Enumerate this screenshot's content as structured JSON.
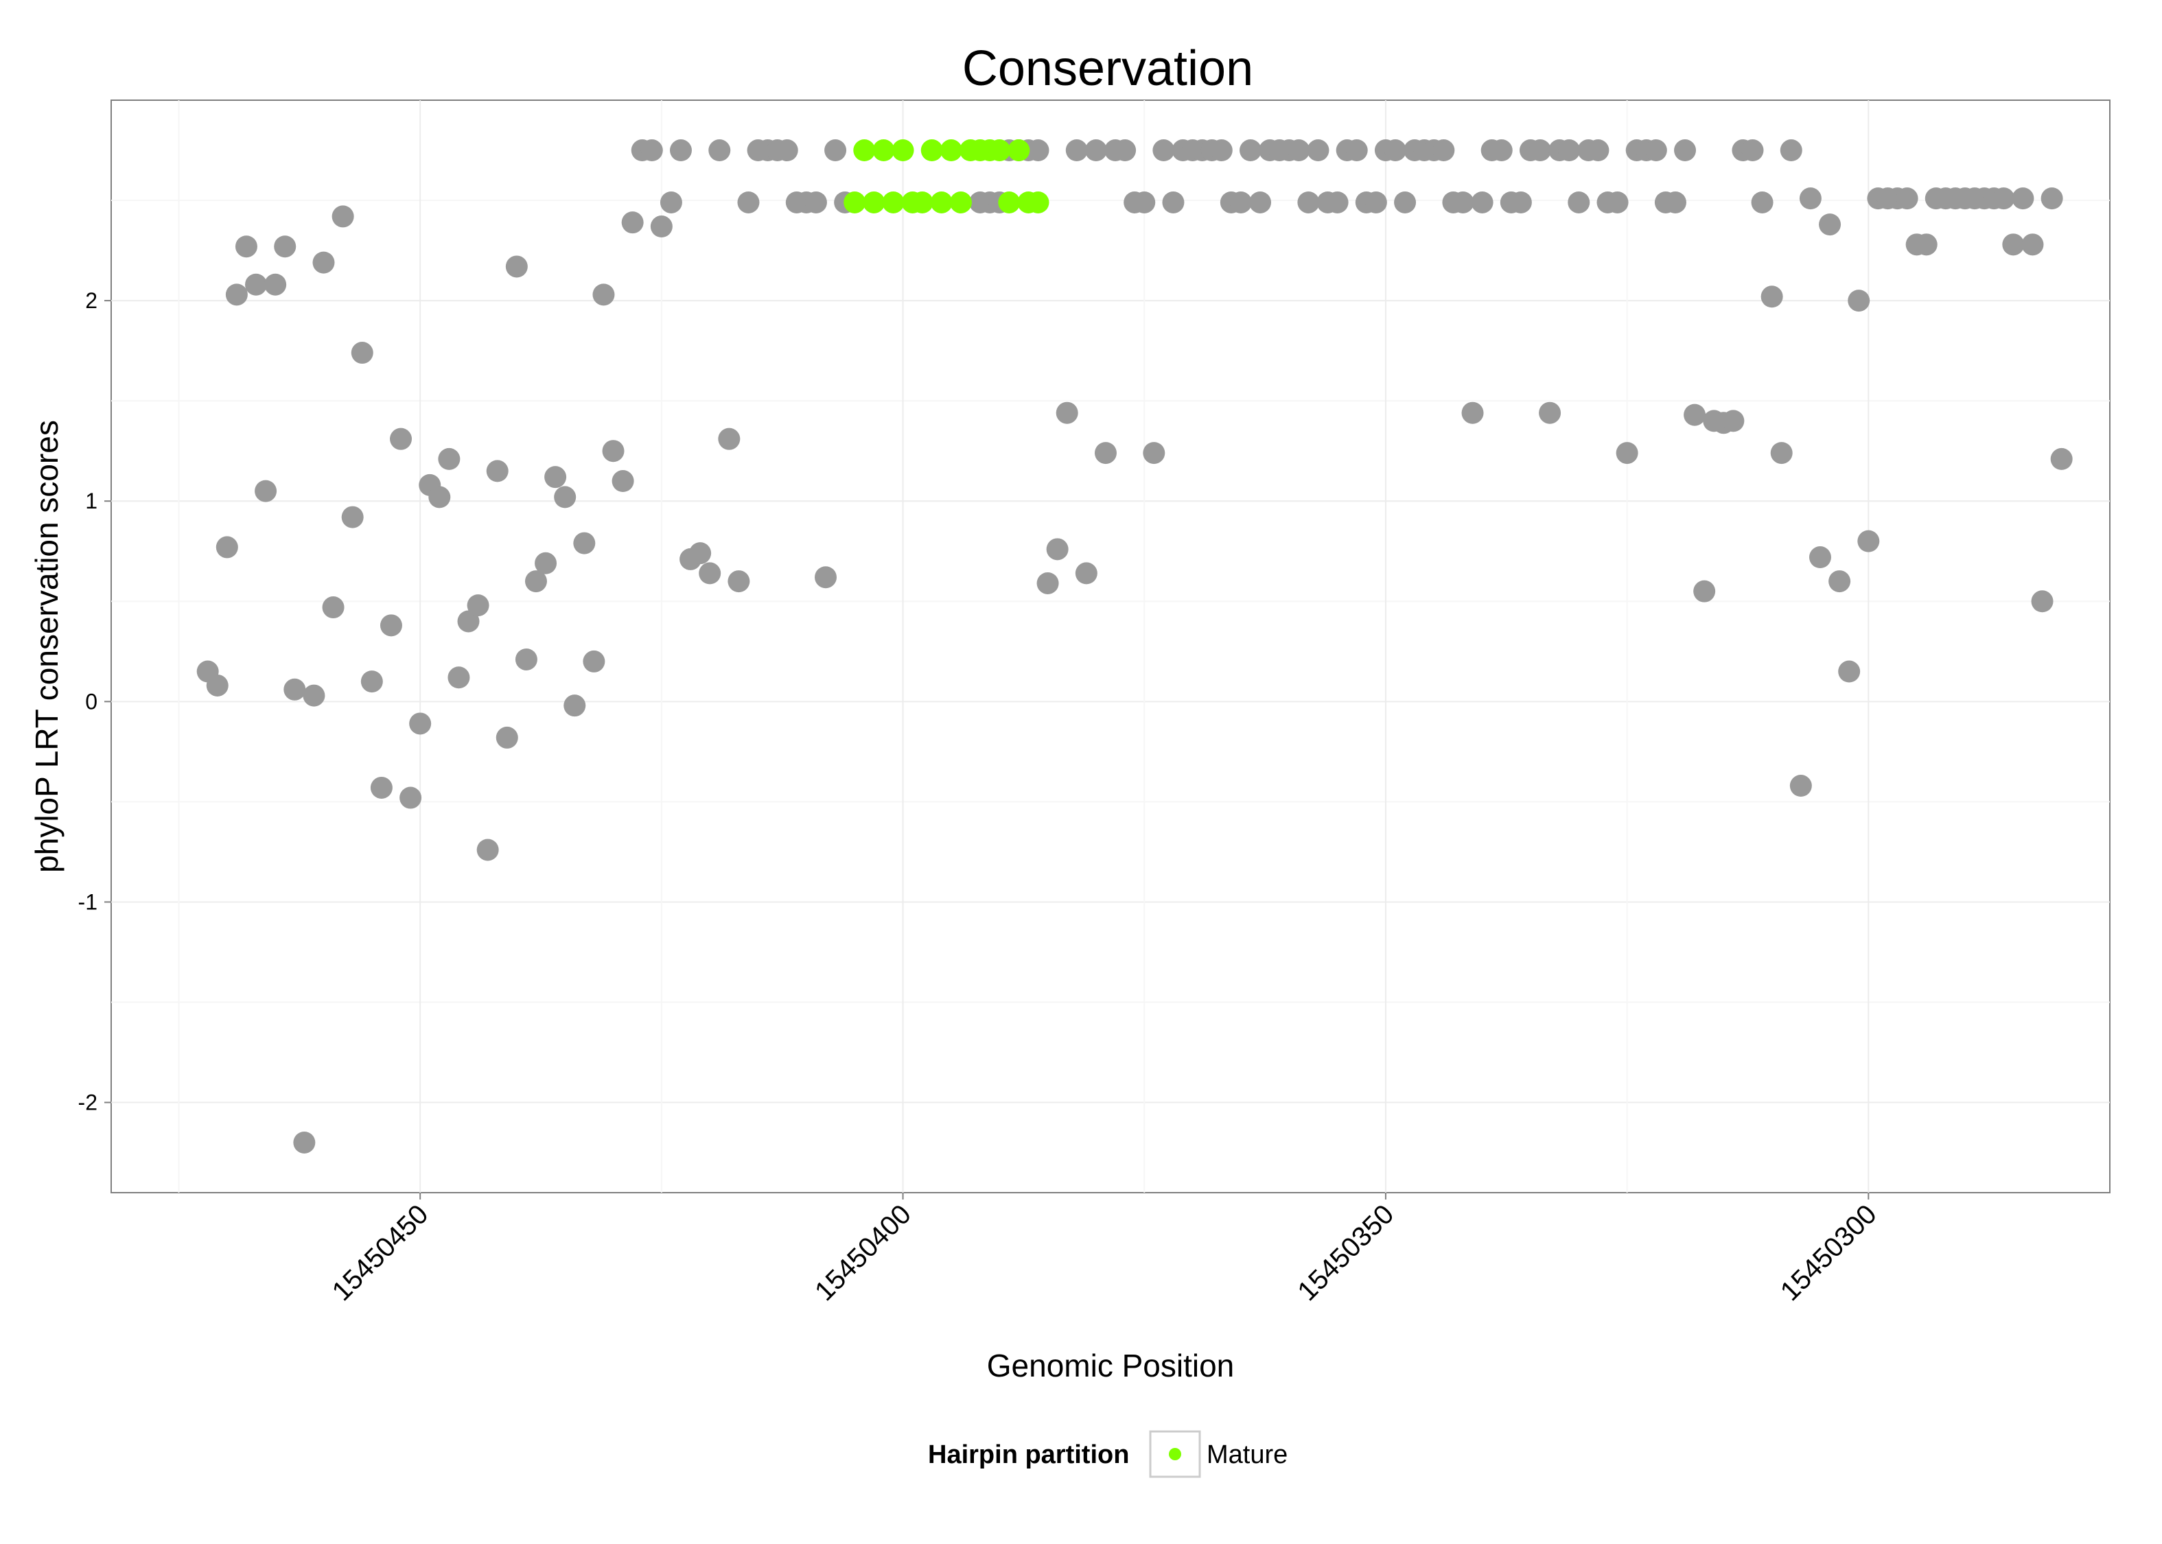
{
  "chart_data": {
    "type": "scatter",
    "title": "Conservation",
    "xlabel": "Genomic Position",
    "ylabel": "phyloP LRT conservation scores",
    "x_reversed": true,
    "xlim": [
      15450482,
      15450275
    ],
    "ylim": [
      -2.45,
      3.0
    ],
    "xticks": [
      15450450,
      15450400,
      15450350,
      15450300
    ],
    "xtick_labels": [
      "15450450",
      "15450400",
      "15450350",
      "15450300"
    ],
    "yticks": [
      -2,
      -1,
      0,
      1,
      2
    ],
    "ytick_labels": [
      "-2",
      "-1",
      "0",
      "1",
      "2"
    ],
    "grid": true,
    "legend": {
      "title": "Hairpin partition",
      "position": "bottom",
      "entries": [
        {
          "label": "Mature",
          "color": "#7fff00"
        }
      ]
    },
    "colors": {
      "default": "#999999",
      "Mature": "#7fff00"
    },
    "series": [
      {
        "name": "Hairpin",
        "color": "#999999",
        "points": [
          [
            15450472,
            0.15
          ],
          [
            15450471,
            0.08
          ],
          [
            15450470,
            0.77
          ],
          [
            15450469,
            2.03
          ],
          [
            15450468,
            2.27
          ],
          [
            15450467,
            2.08
          ],
          [
            15450466,
            1.05
          ],
          [
            15450465,
            2.08
          ],
          [
            15450464,
            2.27
          ],
          [
            15450463,
            0.06
          ],
          [
            15450462,
            -2.2
          ],
          [
            15450461,
            0.03
          ],
          [
            15450460,
            2.19
          ],
          [
            15450459,
            0.47
          ],
          [
            15450458,
            2.42
          ],
          [
            15450457,
            0.92
          ],
          [
            15450456,
            1.74
          ],
          [
            15450455,
            0.1
          ],
          [
            15450454,
            -0.43
          ],
          [
            15450453,
            0.38
          ],
          [
            15450452,
            1.31
          ],
          [
            15450451,
            -0.48
          ],
          [
            15450450,
            -0.11
          ],
          [
            15450449,
            1.08
          ],
          [
            15450448,
            1.02
          ],
          [
            15450447,
            1.21
          ],
          [
            15450446,
            0.12
          ],
          [
            15450445,
            0.4
          ],
          [
            15450444,
            0.48
          ],
          [
            15450443,
            -0.74
          ],
          [
            15450442,
            1.15
          ],
          [
            15450441,
            -0.18
          ],
          [
            15450440,
            2.17
          ],
          [
            15450439,
            0.21
          ],
          [
            15450438,
            0.6
          ],
          [
            15450437,
            0.69
          ],
          [
            15450436,
            1.12
          ],
          [
            15450435,
            1.02
          ],
          [
            15450434,
            -0.02
          ],
          [
            15450433,
            0.79
          ],
          [
            15450432,
            0.2
          ],
          [
            15450431,
            2.03
          ],
          [
            15450430,
            1.25
          ],
          [
            15450429,
            1.1
          ],
          [
            15450428,
            2.39
          ],
          [
            15450427,
            2.75
          ],
          [
            15450426,
            2.75
          ],
          [
            15450425,
            2.37
          ],
          [
            15450424,
            2.49
          ],
          [
            15450423,
            2.75
          ],
          [
            15450422,
            0.71
          ],
          [
            15450421,
            0.74
          ],
          [
            15450420,
            0.64
          ],
          [
            15450419,
            2.75
          ],
          [
            15450418,
            1.31
          ],
          [
            15450417,
            0.6
          ],
          [
            15450416,
            2.49
          ],
          [
            15450415,
            2.75
          ],
          [
            15450414,
            2.75
          ],
          [
            15450413,
            2.75
          ],
          [
            15450412,
            2.75
          ],
          [
            15450411,
            2.49
          ],
          [
            15450410,
            2.49
          ],
          [
            15450409,
            2.49
          ],
          [
            15450408,
            0.62
          ],
          [
            15450407,
            2.75
          ],
          [
            15450406,
            2.49
          ],
          [
            15450392,
            2.49
          ],
          [
            15450391,
            2.49
          ],
          [
            15450390,
            2.49
          ],
          [
            15450389,
            2.75
          ],
          [
            15450388,
            2.75
          ],
          [
            15450387,
            2.75
          ],
          [
            15450386,
            2.75
          ],
          [
            15450385,
            0.59
          ],
          [
            15450384,
            0.76
          ],
          [
            15450383,
            1.44
          ],
          [
            15450382,
            2.75
          ],
          [
            15450381,
            0.64
          ],
          [
            15450380,
            2.75
          ],
          [
            15450379,
            1.24
          ],
          [
            15450378,
            2.75
          ],
          [
            15450377,
            2.75
          ],
          [
            15450376,
            2.49
          ],
          [
            15450375,
            2.49
          ],
          [
            15450374,
            1.24
          ],
          [
            15450373,
            2.75
          ],
          [
            15450372,
            2.49
          ],
          [
            15450371,
            2.75
          ],
          [
            15450370,
            2.75
          ],
          [
            15450369,
            2.75
          ],
          [
            15450368,
            2.75
          ],
          [
            15450367,
            2.75
          ],
          [
            15450366,
            2.49
          ],
          [
            15450365,
            2.49
          ],
          [
            15450364,
            2.75
          ],
          [
            15450363,
            2.49
          ],
          [
            15450362,
            2.75
          ],
          [
            15450361,
            2.75
          ],
          [
            15450360,
            2.75
          ],
          [
            15450359,
            2.75
          ],
          [
            15450358,
            2.49
          ],
          [
            15450357,
            2.75
          ],
          [
            15450356,
            2.49
          ],
          [
            15450355,
            2.49
          ],
          [
            15450354,
            2.75
          ],
          [
            15450353,
            2.75
          ],
          [
            15450352,
            2.49
          ],
          [
            15450351,
            2.49
          ],
          [
            15450350,
            2.75
          ],
          [
            15450349,
            2.75
          ],
          [
            15450348,
            2.49
          ],
          [
            15450347,
            2.75
          ],
          [
            15450346,
            2.75
          ],
          [
            15450345,
            2.75
          ],
          [
            15450344,
            2.75
          ],
          [
            15450343,
            2.49
          ],
          [
            15450342,
            2.49
          ],
          [
            15450341,
            1.44
          ],
          [
            15450340,
            2.49
          ],
          [
            15450339,
            2.75
          ],
          [
            15450338,
            2.75
          ],
          [
            15450337,
            2.49
          ],
          [
            15450336,
            2.49
          ],
          [
            15450335,
            2.75
          ],
          [
            15450334,
            2.75
          ],
          [
            15450333,
            1.44
          ],
          [
            15450332,
            2.75
          ],
          [
            15450331,
            2.75
          ],
          [
            15450330,
            2.49
          ],
          [
            15450329,
            2.75
          ],
          [
            15450328,
            2.75
          ],
          [
            15450327,
            2.49
          ],
          [
            15450326,
            2.49
          ],
          [
            15450325,
            1.24
          ],
          [
            15450324,
            2.75
          ],
          [
            15450323,
            2.75
          ],
          [
            15450322,
            2.75
          ],
          [
            15450321,
            2.49
          ],
          [
            15450320,
            2.49
          ],
          [
            15450319,
            2.75
          ],
          [
            15450318,
            1.43
          ],
          [
            15450317,
            0.55
          ],
          [
            15450316,
            1.4
          ],
          [
            15450315,
            1.39
          ],
          [
            15450314,
            1.4
          ],
          [
            15450313,
            2.75
          ],
          [
            15450312,
            2.75
          ],
          [
            15450311,
            2.49
          ],
          [
            15450310,
            2.02
          ],
          [
            15450309,
            1.24
          ],
          [
            15450308,
            2.75
          ],
          [
            15450307,
            -0.42
          ],
          [
            15450306,
            2.51
          ],
          [
            15450305,
            0.72
          ],
          [
            15450304,
            2.38
          ],
          [
            15450303,
            0.6
          ],
          [
            15450302,
            0.15
          ],
          [
            15450301,
            2.0
          ],
          [
            15450300,
            0.8
          ],
          [
            15450299,
            2.51
          ],
          [
            15450298,
            2.51
          ],
          [
            15450297,
            2.51
          ],
          [
            15450296,
            2.51
          ],
          [
            15450295,
            2.28
          ],
          [
            15450294,
            2.28
          ],
          [
            15450293,
            2.51
          ],
          [
            15450292,
            2.51
          ],
          [
            15450291,
            2.51
          ],
          [
            15450290,
            2.51
          ],
          [
            15450289,
            2.51
          ],
          [
            15450288,
            2.51
          ],
          [
            15450287,
            2.51
          ],
          [
            15450286,
            2.51
          ],
          [
            15450285,
            2.28
          ],
          [
            15450284,
            2.51
          ],
          [
            15450283,
            2.28
          ],
          [
            15450282,
            0.5
          ],
          [
            15450281,
            2.51
          ],
          [
            15450280,
            1.21
          ]
        ]
      },
      {
        "name": "Mature",
        "color": "#7fff00",
        "points": [
          [
            15450405,
            2.49
          ],
          [
            15450404,
            2.75
          ],
          [
            15450403,
            2.49
          ],
          [
            15450402,
            2.75
          ],
          [
            15450401,
            2.49
          ],
          [
            15450400,
            2.75
          ],
          [
            15450399,
            2.49
          ],
          [
            15450398,
            2.49
          ],
          [
            15450397,
            2.75
          ],
          [
            15450396,
            2.49
          ],
          [
            15450395,
            2.75
          ],
          [
            15450394,
            2.49
          ],
          [
            15450393,
            2.75
          ],
          [
            15450392,
            2.75
          ],
          [
            15450391,
            2.75
          ],
          [
            15450390,
            2.75
          ],
          [
            15450389,
            2.49
          ],
          [
            15450388,
            2.75
          ],
          [
            15450387,
            2.49
          ],
          [
            15450386,
            2.49
          ]
        ]
      }
    ]
  }
}
